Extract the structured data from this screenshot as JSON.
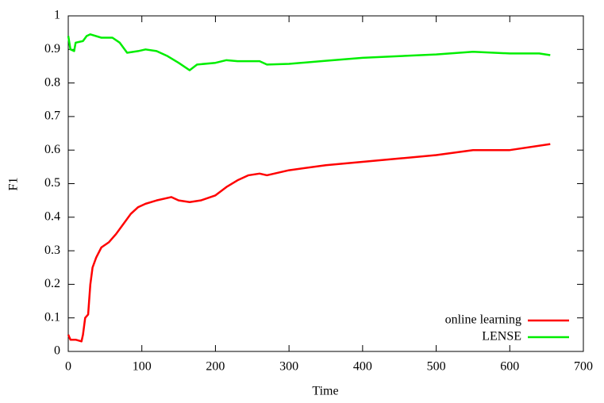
{
  "chart_data": {
    "type": "line",
    "x_label": "Time",
    "y_label": "F1",
    "xlim": [
      0,
      700
    ],
    "xticks": [
      0,
      100,
      200,
      300,
      400,
      500,
      600,
      700
    ],
    "ylim": [
      0,
      1
    ],
    "yticks": [
      0,
      0.1,
      0.2,
      0.3,
      0.4,
      0.5,
      0.6,
      0.7,
      0.8,
      0.9,
      1
    ],
    "legend": "bottom right",
    "series": [
      {
        "name": "online learning",
        "color": "#ff0000",
        "x": [
          0,
          3,
          10,
          18,
          20,
          23,
          27,
          30,
          33,
          38,
          45,
          55,
          65,
          75,
          85,
          95,
          105,
          120,
          140,
          150,
          165,
          180,
          200,
          215,
          230,
          245,
          260,
          270,
          300,
          350,
          400,
          450,
          500,
          550,
          600,
          655
        ],
        "values": [
          0.05,
          0.035,
          0.035,
          0.03,
          0.05,
          0.1,
          0.11,
          0.2,
          0.25,
          0.28,
          0.31,
          0.325,
          0.35,
          0.38,
          0.41,
          0.43,
          0.44,
          0.45,
          0.46,
          0.45,
          0.445,
          0.45,
          0.465,
          0.49,
          0.51,
          0.525,
          0.53,
          0.525,
          0.54,
          0.555,
          0.565,
          0.575,
          0.585,
          0.6,
          0.6,
          0.618
        ]
      },
      {
        "name": "LENSE",
        "color": "#00ee00",
        "x": [
          0,
          3,
          8,
          10,
          20,
          25,
          30,
          45,
          60,
          70,
          80,
          95,
          105,
          120,
          135,
          150,
          165,
          175,
          200,
          215,
          230,
          260,
          270,
          300,
          350,
          400,
          450,
          500,
          550,
          600,
          640,
          655
        ],
        "values": [
          0.94,
          0.9,
          0.895,
          0.92,
          0.925,
          0.94,
          0.945,
          0.935,
          0.935,
          0.92,
          0.89,
          0.895,
          0.9,
          0.895,
          0.88,
          0.86,
          0.838,
          0.855,
          0.86,
          0.868,
          0.865,
          0.865,
          0.855,
          0.857,
          0.866,
          0.875,
          0.88,
          0.885,
          0.893,
          0.888,
          0.888,
          0.883
        ]
      }
    ]
  }
}
